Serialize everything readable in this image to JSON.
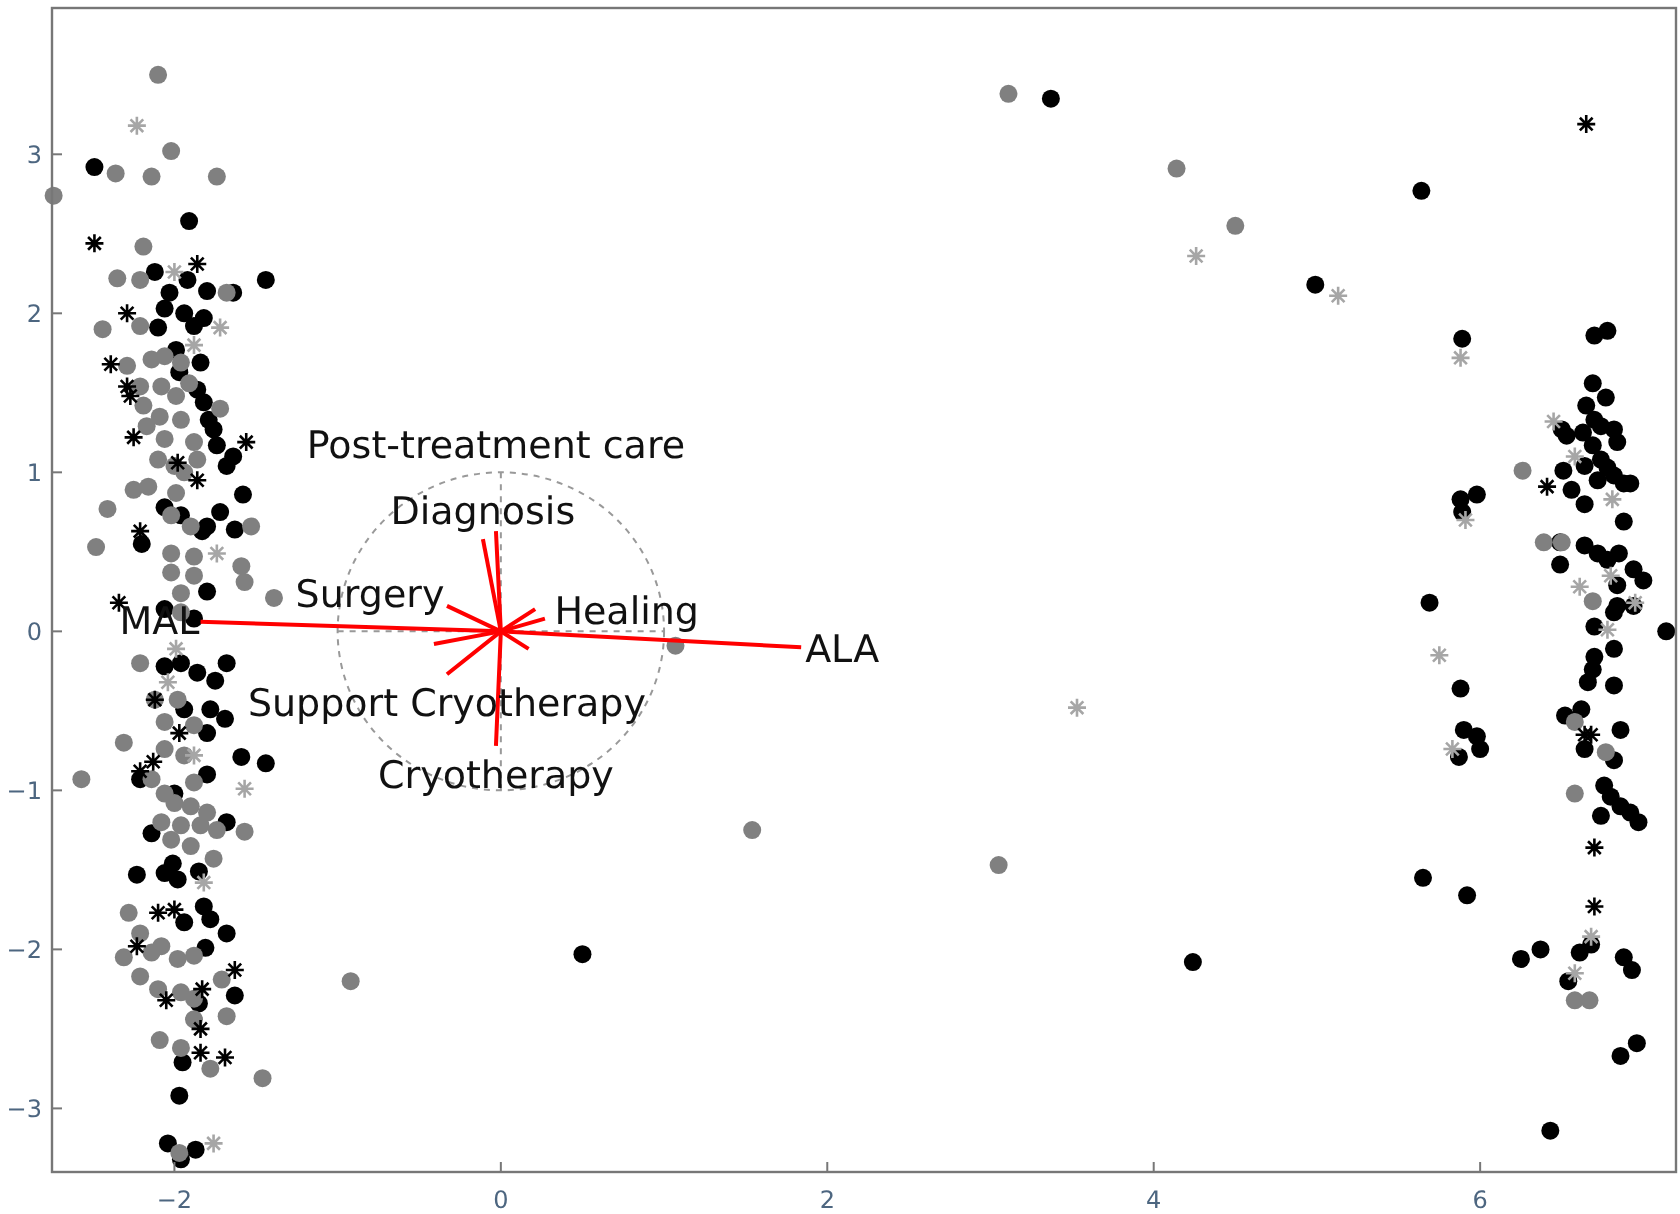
{
  "chart_data": {
    "type": "scatter",
    "xlim": [
      -2.75,
      7.2
    ],
    "ylim": [
      -3.4,
      3.92
    ],
    "xticks": [
      -2,
      0,
      2,
      4,
      6
    ],
    "yticks": [
      -3,
      -2,
      -1,
      0,
      1,
      2,
      3
    ],
    "grid": false,
    "series": [
      {
        "marker": "circle",
        "color": "#000000",
        "x": [
          3.37,
          4.99,
          5.64,
          0.5,
          4.24,
          5.65,
          5.92,
          5.89,
          5.88,
          5.98,
          5.69,
          7.14,
          6.43,
          6.7,
          6.78,
          6.69,
          6.77,
          6.65,
          6.7,
          6.74,
          6.82,
          6.5,
          6.53,
          6.63,
          6.69,
          6.84,
          6.74,
          6.78,
          6.82,
          6.88,
          6.92,
          6.64,
          6.51,
          6.56,
          6.64,
          6.72,
          5.89,
          6.88,
          6.49,
          6.64,
          6.72,
          6.78,
          6.85,
          6.49,
          6.94,
          7.0,
          6.84,
          6.82,
          6.7,
          6.84,
          6.94,
          6.82,
          6.7,
          6.69,
          6.66,
          6.82,
          5.88,
          6.52,
          6.62,
          6.86,
          5.9,
          5.98,
          6.0,
          5.87,
          6.64,
          6.82,
          6.76,
          6.8,
          6.86,
          6.92,
          6.97,
          6.74,
          6.25,
          6.37,
          6.61,
          6.68,
          6.54,
          6.88,
          6.93,
          6.86,
          6.96,
          -2.49,
          -1.91,
          -1.44,
          -2.12,
          -1.92,
          -2.03,
          -1.8,
          -1.64,
          -2.06,
          -1.94,
          -1.82,
          -2.1,
          -1.88,
          -1.99,
          -1.84,
          -1.97,
          -1.86,
          -1.82,
          -1.79,
          -1.76,
          -1.74,
          -1.64,
          -1.68,
          -1.58,
          -2.06,
          -1.72,
          -1.96,
          -2.2,
          -1.8,
          -1.63,
          -1.83,
          -1.8,
          -2.06,
          -1.88,
          -2.06,
          -1.96,
          -1.68,
          -1.86,
          -1.75,
          -1.94,
          -1.78,
          -1.69,
          -1.8,
          -1.59,
          -1.44,
          -1.8,
          -2.21,
          -2.0,
          -2.14,
          -1.68,
          -2.23,
          -2.06,
          -1.98,
          -1.85,
          -2.01,
          -1.82,
          -1.78,
          -1.68,
          -1.94,
          -1.81,
          -1.63,
          -1.85,
          -1.95,
          -1.97,
          -2.04,
          -1.96,
          -1.87
        ],
        "values": [
          3.35,
          2.18,
          2.77,
          -2.03,
          -2.08,
          -1.55,
          -1.66,
          1.84,
          0.83,
          0.86,
          0.18,
          0.0,
          -3.14,
          1.86,
          1.89,
          1.56,
          1.47,
          1.42,
          1.33,
          1.29,
          1.27,
          1.27,
          1.23,
          1.25,
          1.17,
          1.19,
          1.08,
          1.03,
          0.98,
          0.93,
          0.93,
          1.04,
          1.01,
          0.89,
          0.8,
          0.95,
          0.75,
          0.69,
          0.56,
          0.54,
          0.49,
          0.45,
          0.49,
          0.42,
          0.39,
          0.32,
          0.16,
          0.12,
          0.03,
          0.29,
          0.16,
          -0.11,
          -0.16,
          -0.24,
          -0.32,
          -0.34,
          -0.36,
          -0.53,
          -0.49,
          -0.62,
          -0.62,
          -0.66,
          -0.74,
          -0.79,
          -0.74,
          -0.81,
          -0.97,
          -1.04,
          -1.1,
          -1.14,
          -1.2,
          -1.16,
          -2.06,
          -2.0,
          -2.02,
          -1.97,
          -2.2,
          -2.05,
          -2.13,
          -2.67,
          -2.59,
          2.92,
          2.58,
          2.21,
          2.26,
          2.21,
          2.13,
          2.14,
          2.13,
          2.03,
          2.0,
          1.97,
          1.91,
          1.92,
          1.77,
          1.69,
          1.63,
          1.52,
          1.44,
          1.33,
          1.27,
          1.17,
          1.1,
          1.04,
          0.86,
          0.78,
          0.75,
          0.73,
          0.55,
          0.66,
          0.64,
          0.63,
          0.25,
          0.14,
          0.08,
          -0.22,
          -0.2,
          -0.2,
          -0.26,
          -0.31,
          -0.49,
          -0.49,
          -0.55,
          -0.64,
          -0.79,
          -0.83,
          -0.9,
          -0.93,
          -1.02,
          -1.27,
          -1.2,
          -1.53,
          -1.52,
          -1.56,
          -1.51,
          -1.46,
          -1.73,
          -1.81,
          -1.9,
          -1.83,
          -1.99,
          -2.29,
          -2.34,
          -2.71,
          -2.92,
          -3.22,
          -3.32,
          -3.26
        ]
      },
      {
        "marker": "circle",
        "color": "#808080",
        "x": [
          3.11,
          4.14,
          4.5,
          3.05,
          1.54,
          -0.92,
          1.07,
          6.26,
          6.39,
          6.5,
          6.69,
          6.58,
          6.77,
          6.58,
          6.58,
          6.67,
          -2.1,
          -2.36,
          -2.14,
          -2.02,
          -1.74,
          -2.74,
          -2.19,
          -2.35,
          -2.21,
          -1.68,
          -2.44,
          -2.21,
          -2.29,
          -2.14,
          -2.06,
          -1.96,
          -2.21,
          -2.08,
          -1.99,
          -1.91,
          -2.19,
          -2.09,
          -1.96,
          -1.72,
          -2.17,
          -2.06,
          -1.88,
          -2.1,
          -2.0,
          -1.94,
          -1.86,
          -2.25,
          -2.16,
          -1.99,
          -2.41,
          -2.48,
          -2.02,
          -1.9,
          -1.53,
          -2.02,
          -1.88,
          -1.59,
          -2.02,
          -1.88,
          -1.57,
          -1.39,
          -1.96,
          -1.96,
          -2.21,
          -2.12,
          -1.98,
          -2.06,
          -1.88,
          -2.31,
          -2.06,
          -1.94,
          -2.57,
          -2.14,
          -2.06,
          -1.88,
          -2.0,
          -1.9,
          -1.8,
          -2.08,
          -1.96,
          -1.84,
          -1.74,
          -1.57,
          -2.02,
          -1.9,
          -1.76,
          -2.28,
          -2.21,
          -2.08,
          -2.31,
          -2.14,
          -1.98,
          -1.88,
          -2.21,
          -2.1,
          -1.96,
          -1.88,
          -1.71,
          -1.68,
          -1.88,
          -2.09,
          -1.96,
          -1.78,
          -1.46,
          -1.97
        ],
        "values": [
          3.38,
          2.91,
          2.55,
          -1.47,
          -1.25,
          -2.2,
          -0.09,
          1.01,
          0.56,
          0.56,
          0.19,
          -0.57,
          -0.76,
          -1.02,
          -2.32,
          -2.32,
          3.5,
          2.88,
          2.86,
          3.02,
          2.86,
          2.74,
          2.42,
          2.22,
          2.21,
          2.13,
          1.9,
          1.92,
          1.67,
          1.71,
          1.73,
          1.69,
          1.54,
          1.54,
          1.48,
          1.56,
          1.42,
          1.35,
          1.33,
          1.4,
          1.29,
          1.21,
          1.19,
          1.08,
          1.04,
          1.0,
          1.08,
          0.89,
          0.91,
          0.87,
          0.77,
          0.53,
          0.73,
          0.66,
          0.66,
          0.49,
          0.47,
          0.41,
          0.37,
          0.35,
          0.31,
          0.21,
          0.24,
          0.12,
          -0.2,
          -0.43,
          -0.43,
          -0.57,
          -0.59,
          -0.7,
          -0.74,
          -0.78,
          -0.93,
          -0.93,
          -1.02,
          -0.95,
          -1.08,
          -1.1,
          -1.14,
          -1.2,
          -1.22,
          -1.22,
          -1.25,
          -1.26,
          -1.31,
          -1.35,
          -1.43,
          -1.77,
          -1.9,
          -1.98,
          -2.05,
          -2.02,
          -2.06,
          -2.04,
          -2.17,
          -2.25,
          -2.27,
          -2.31,
          -2.19,
          -2.42,
          -2.44,
          -2.57,
          -2.62,
          -2.75,
          -2.81,
          -3.28
        ]
      },
      {
        "marker": "cross",
        "color": "#000000",
        "x": [
          6.65,
          6.41,
          6.64,
          6.68,
          6.7,
          6.7,
          -2.49,
          -2.29,
          -1.86,
          -2.39,
          -2.29,
          -2.27,
          -2.25,
          -1.56,
          -1.86,
          -1.98,
          -2.21,
          -2.34,
          -2.12,
          -1.97,
          -2.13,
          -2.21,
          -2.0,
          -2.1,
          -2.23,
          -1.63,
          -1.83,
          -1.84,
          -1.84,
          -1.69,
          -2.05
        ],
        "values": [
          3.19,
          0.91,
          -0.65,
          -0.65,
          -1.36,
          -1.73,
          2.44,
          2.0,
          2.31,
          1.68,
          1.54,
          1.48,
          1.22,
          1.19,
          0.95,
          1.06,
          0.63,
          0.18,
          -0.43,
          -0.64,
          -0.82,
          -0.88,
          -1.75,
          -1.77,
          -1.98,
          -2.13,
          -2.25,
          -2.5,
          -2.65,
          -2.68,
          -2.32
        ]
      },
      {
        "marker": "cross",
        "color": "#a6a6a6",
        "x": [
          4.26,
          5.13,
          3.53,
          5.88,
          6.45,
          6.58,
          6.81,
          5.91,
          6.61,
          6.95,
          6.8,
          5.75,
          5.83,
          6.78,
          6.68,
          6.58,
          -2.23,
          -2.0,
          -1.72,
          -1.74,
          -1.88,
          -2.04,
          -1.88,
          -1.57,
          -1.82,
          -1.76,
          -1.99
        ],
        "values": [
          2.36,
          2.11,
          -0.48,
          1.72,
          1.32,
          1.1,
          0.83,
          0.7,
          0.28,
          0.18,
          0.35,
          -0.15,
          -0.74,
          0.01,
          -1.92,
          -2.15,
          3.18,
          2.26,
          1.91,
          0.49,
          1.8,
          -0.32,
          -0.78,
          -0.99,
          -1.58,
          -3.22,
          -0.11
        ]
      },
      {
        "type": "line",
        "color": "#ff0000",
        "x": [
          -1.84,
          0,
          1.84
        ],
        "values": [
          0.06,
          0,
          -0.1
        ]
      },
      {
        "type": "line",
        "color": "#ff0000",
        "x": [
          0,
          -0.11
        ],
        "values": [
          0,
          0.58
        ]
      },
      {
        "type": "line",
        "color": "#ff0000",
        "x": [
          -0.03,
          0,
          -0.03
        ],
        "values": [
          0.63,
          0,
          -0.72
        ]
      },
      {
        "type": "line",
        "color": "#ff0000",
        "x": [
          -0.41,
          0,
          0.27
        ],
        "values": [
          -0.08,
          0,
          0.08
        ]
      },
      {
        "type": "line",
        "color": "#ff0000",
        "x": [
          0.21,
          0,
          -0.33
        ],
        "values": [
          0.14,
          0,
          -0.27
        ]
      },
      {
        "type": "line",
        "color": "#ff0000",
        "x": [
          0.17,
          0,
          -0.33
        ],
        "values": [
          -0.11,
          0,
          0.16
        ]
      }
    ],
    "annotations": [
      {
        "text": "MAL",
        "x": -1.84,
        "y": 0.06
      },
      {
        "text": "ALA",
        "x": 1.84,
        "y": -0.1
      },
      {
        "text": "Diagnosis",
        "x": -0.11,
        "y": 0.58
      },
      {
        "text": "Post-treatment care",
        "x": -0.03,
        "y": 0.63
      },
      {
        "text": "Healing",
        "x": 0.27,
        "y": 0.08
      },
      {
        "text": "Surgery",
        "x": -0.33,
        "y": 0.16
      },
      {
        "text": "Support Cryotherapy",
        "x": -0.33,
        "y": -0.27
      },
      {
        "text": "Cryotherapy",
        "x": -0.03,
        "y": -0.72
      }
    ]
  }
}
